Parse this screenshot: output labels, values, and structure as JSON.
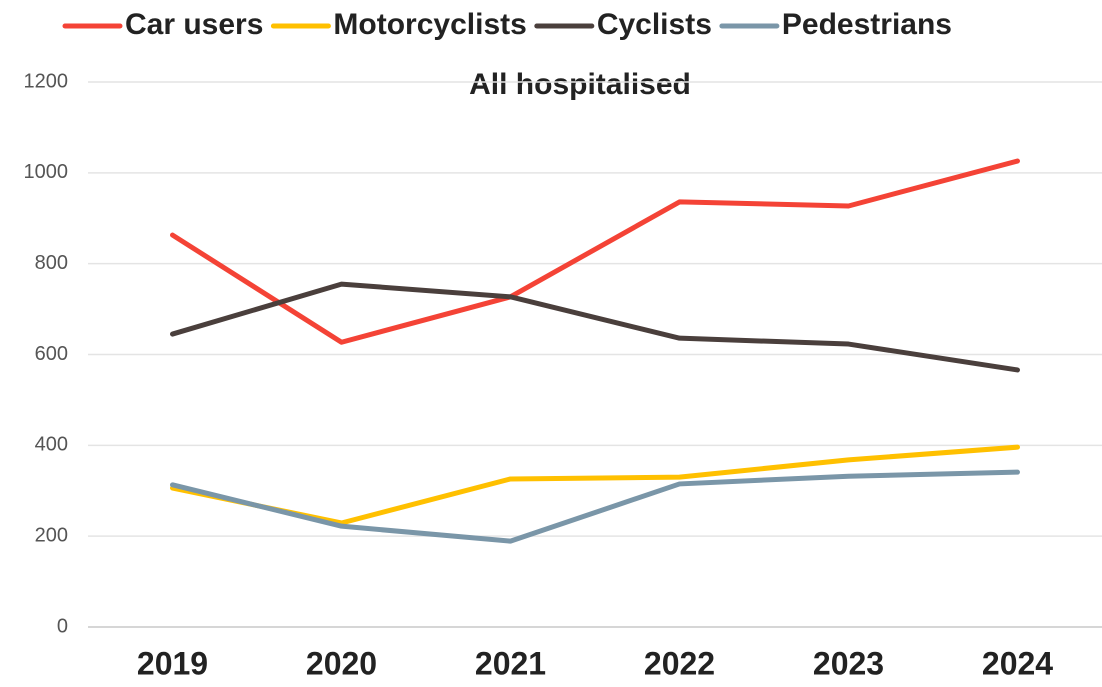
{
  "chart_data": {
    "type": "line",
    "title": "All hospitalised",
    "categories": [
      "2019",
      "2020",
      "2021",
      "2022",
      "2023",
      "2024"
    ],
    "series": [
      {
        "name": "Car users",
        "color": "#f44336",
        "values": [
          863,
          627,
          727,
          936,
          927,
          1026
        ]
      },
      {
        "name": "Motorcyclists",
        "color": "#ffc000",
        "values": [
          306,
          229,
          326,
          330,
          368,
          396
        ]
      },
      {
        "name": "Cyclists",
        "color": "#4a3f3c",
        "values": [
          645,
          755,
          727,
          636,
          623,
          566
        ]
      },
      {
        "name": "Pedestrians",
        "color": "#7a96a8",
        "values": [
          313,
          222,
          189,
          315,
          332,
          341
        ]
      }
    ],
    "ylim": [
      0,
      1200
    ],
    "yticks": [
      0,
      200,
      400,
      600,
      800,
      1000,
      1200
    ],
    "grid": true,
    "legend": "top"
  }
}
